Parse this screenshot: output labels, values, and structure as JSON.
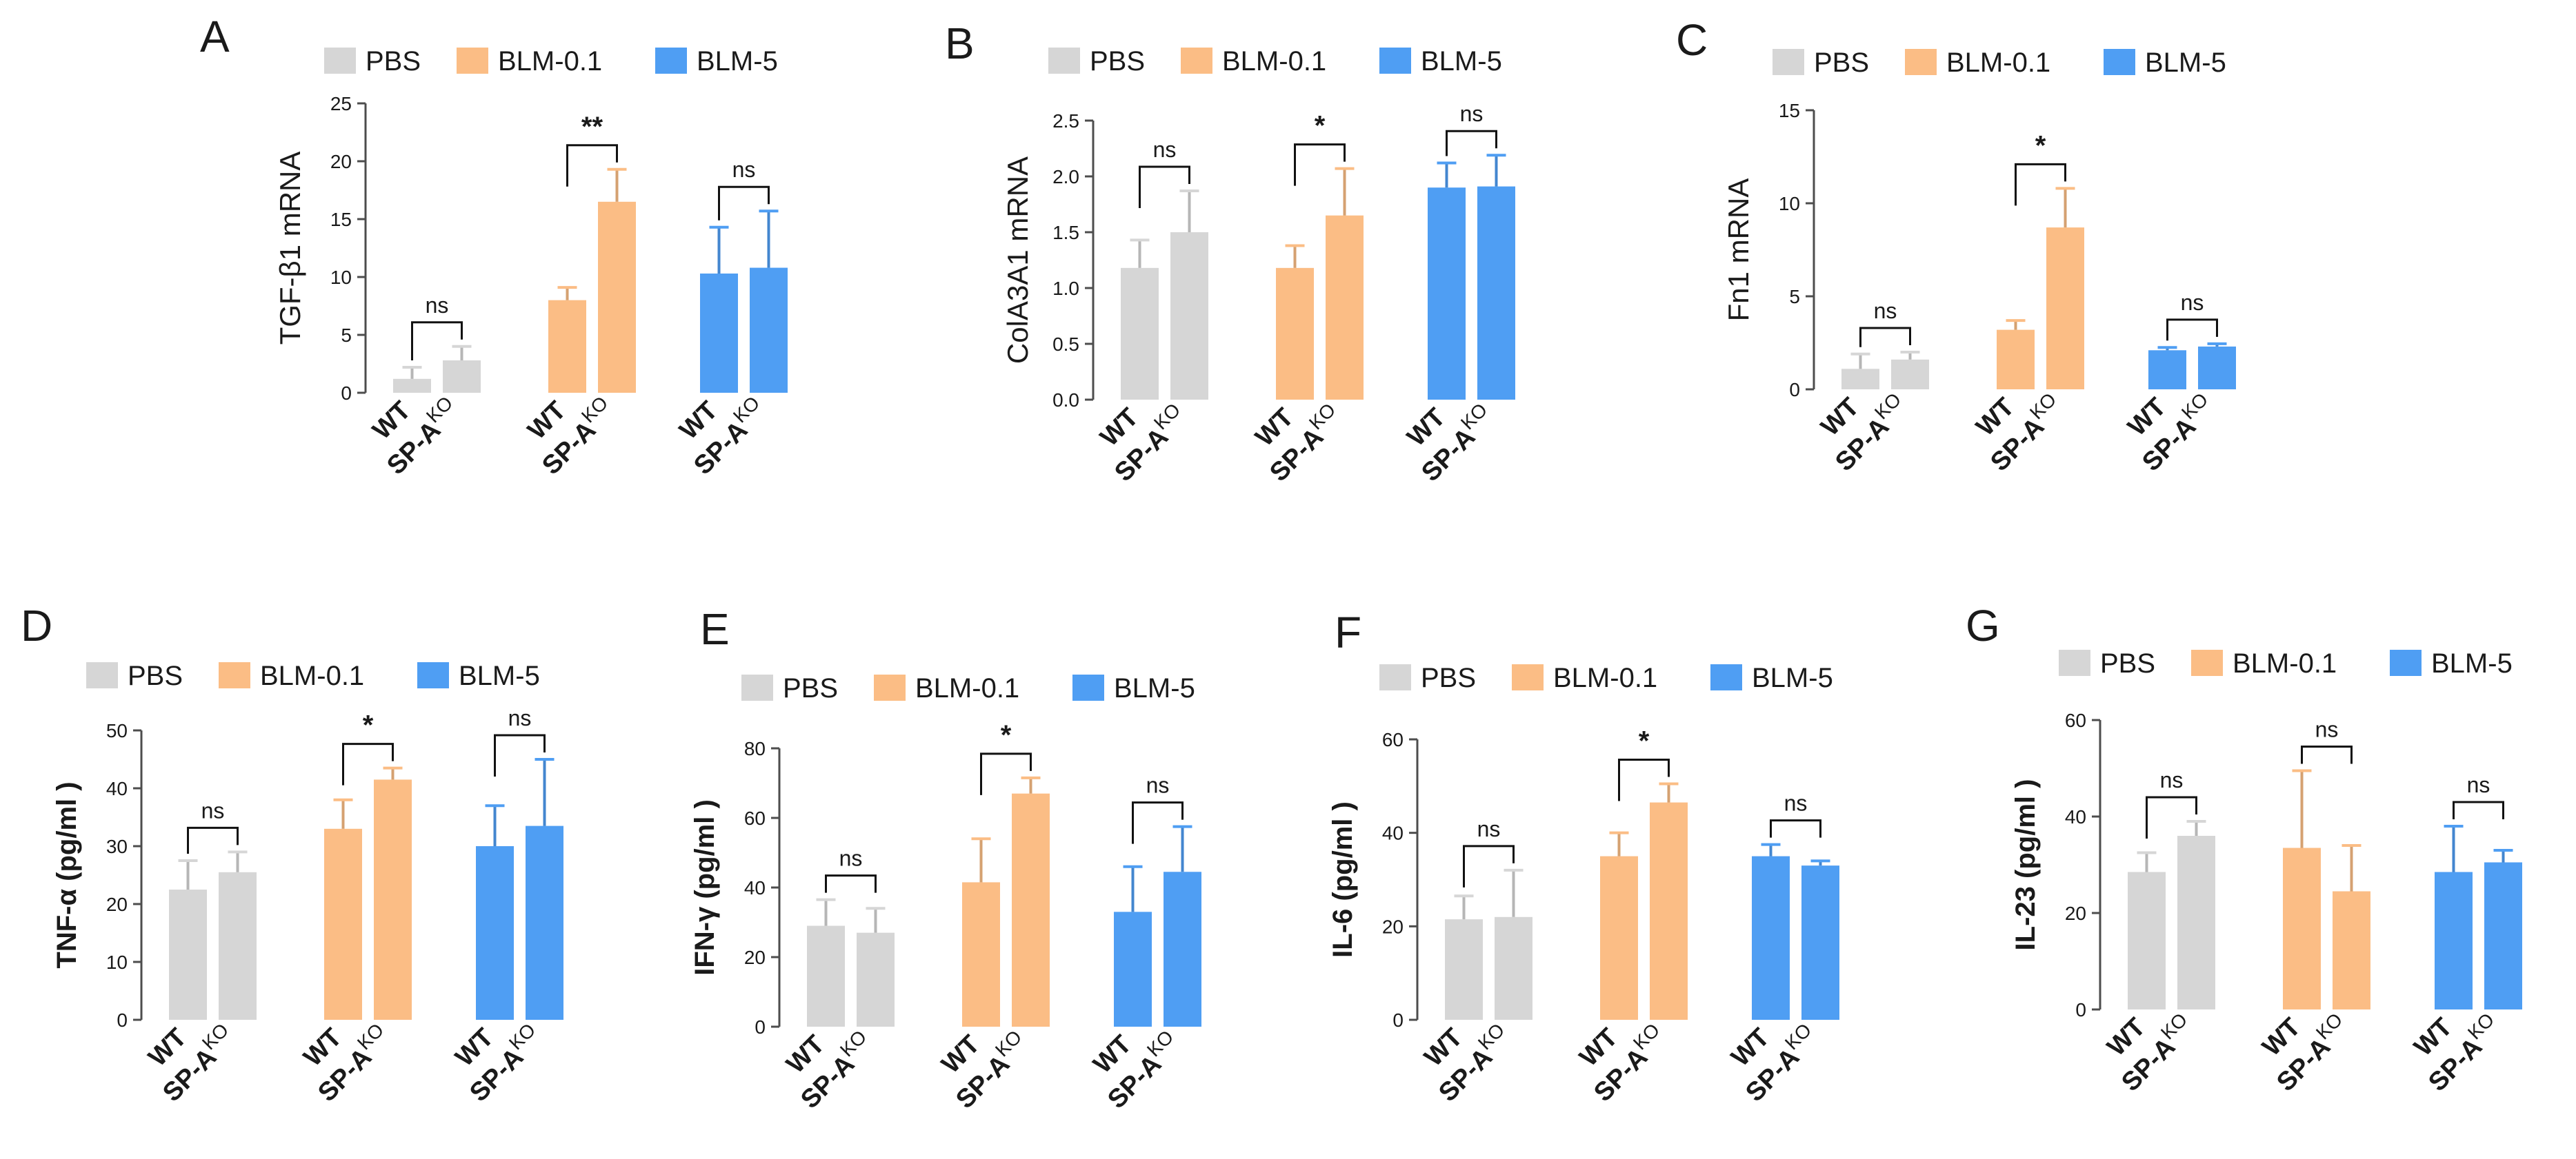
{
  "colors": {
    "PBS": "#d6d6d6",
    "BLM-0.1": "#fbbd85",
    "BLM-5": "#4f9ef3",
    "axis": "#4d4d4d",
    "text": "#1a1a1a"
  },
  "legend": [
    "PBS",
    "BLM-0.1",
    "BLM-5"
  ],
  "x_labels": {
    "wt": "WT",
    "spa": "SP-A",
    "ko": "KO"
  },
  "chart_data": [
    {
      "panel": "A",
      "type": "bar",
      "ylabel": "TGF-β1 mRNA",
      "ylabel_bold": false,
      "ylim": [
        0,
        25
      ],
      "yticks": [
        0,
        5,
        10,
        15,
        20,
        25
      ],
      "categories": [
        "WT",
        "SP-A KO"
      ],
      "series": [
        {
          "name": "PBS",
          "values": [
            1.2,
            2.8
          ],
          "errors": [
            1.0,
            1.2
          ]
        },
        {
          "name": "BLM-0.1",
          "values": [
            8.0,
            16.5
          ],
          "errors": [
            1.1,
            2.8
          ]
        },
        {
          "name": "BLM-5",
          "values": [
            10.3,
            10.8
          ],
          "errors": [
            4.0,
            4.9
          ]
        }
      ],
      "significance": [
        {
          "group": "PBS",
          "label": "ns"
        },
        {
          "group": "BLM-0.1",
          "label": "**"
        },
        {
          "group": "BLM-5",
          "label": "ns"
        }
      ]
    },
    {
      "panel": "B",
      "type": "bar",
      "ylabel": "ColA3A1 mRNA",
      "ylabel_bold": false,
      "ylim": [
        0,
        2.5
      ],
      "yticks": [
        0,
        0.5,
        1.0,
        1.5,
        2.0,
        2.5
      ],
      "categories": [
        "WT",
        "SP-A KO"
      ],
      "series": [
        {
          "name": "PBS",
          "values": [
            1.18,
            1.5
          ],
          "errors": [
            0.25,
            0.37
          ]
        },
        {
          "name": "BLM-0.1",
          "values": [
            1.18,
            1.65
          ],
          "errors": [
            0.2,
            0.42
          ]
        },
        {
          "name": "BLM-5",
          "values": [
            1.9,
            1.91
          ],
          "errors": [
            0.22,
            0.28
          ]
        }
      ],
      "significance": [
        {
          "group": "PBS",
          "label": "ns"
        },
        {
          "group": "BLM-0.1",
          "label": "*"
        },
        {
          "group": "BLM-5",
          "label": "ns"
        }
      ]
    },
    {
      "panel": "C",
      "type": "bar",
      "ylabel": "Fn1 mRNA",
      "ylabel_bold": false,
      "ylim": [
        0,
        15
      ],
      "yticks": [
        0,
        5,
        10,
        15
      ],
      "categories": [
        "WT",
        "SP-A KO"
      ],
      "series": [
        {
          "name": "PBS",
          "values": [
            1.1,
            1.6
          ],
          "errors": [
            0.8,
            0.4
          ]
        },
        {
          "name": "BLM-0.1",
          "values": [
            3.2,
            8.7
          ],
          "errors": [
            0.5,
            2.1
          ]
        },
        {
          "name": "BLM-5",
          "values": [
            2.1,
            2.3
          ],
          "errors": [
            0.15,
            0.15
          ]
        }
      ],
      "significance": [
        {
          "group": "PBS",
          "label": "ns"
        },
        {
          "group": "BLM-0.1",
          "label": "*"
        },
        {
          "group": "BLM-5",
          "label": "ns"
        }
      ]
    },
    {
      "panel": "D",
      "type": "bar",
      "ylabel": "TNF-α (pg/ml )",
      "ylabel_bold": true,
      "ylim": [
        0,
        50
      ],
      "yticks": [
        0,
        10,
        20,
        30,
        40,
        50
      ],
      "categories": [
        "WT",
        "SP-A KO"
      ],
      "series": [
        {
          "name": "PBS",
          "values": [
            22.5,
            25.5
          ],
          "errors": [
            5.0,
            3.5
          ]
        },
        {
          "name": "BLM-0.1",
          "values": [
            33.0,
            41.5
          ],
          "errors": [
            5.0,
            2.0
          ]
        },
        {
          "name": "BLM-5",
          "values": [
            30.0,
            33.5
          ],
          "errors": [
            7.0,
            11.5
          ]
        }
      ],
      "significance": [
        {
          "group": "PBS",
          "label": "ns"
        },
        {
          "group": "BLM-0.1",
          "label": "*"
        },
        {
          "group": "BLM-5",
          "label": "ns"
        }
      ]
    },
    {
      "panel": "E",
      "type": "bar",
      "ylabel": "IFN-γ (pg/ml )",
      "ylabel_bold": true,
      "ylim": [
        0,
        80
      ],
      "yticks": [
        0,
        20,
        40,
        60,
        80
      ],
      "categories": [
        "WT",
        "SP-A KO"
      ],
      "series": [
        {
          "name": "PBS",
          "values": [
            29.0,
            27.0
          ],
          "errors": [
            7.5,
            7.0
          ]
        },
        {
          "name": "BLM-0.1",
          "values": [
            41.5,
            67.0
          ],
          "errors": [
            12.5,
            4.5
          ]
        },
        {
          "name": "BLM-5",
          "values": [
            33.0,
            44.5
          ],
          "errors": [
            13.0,
            13.0
          ]
        }
      ],
      "significance": [
        {
          "group": "PBS",
          "label": "ns"
        },
        {
          "group": "BLM-0.1",
          "label": "*"
        },
        {
          "group": "BLM-5",
          "label": "ns"
        }
      ]
    },
    {
      "panel": "F",
      "type": "bar",
      "ylabel": "IL-6 (pg/ml )",
      "ylabel_bold": true,
      "ylim": [
        0,
        60
      ],
      "yticks": [
        0,
        20,
        40,
        60
      ],
      "categories": [
        "WT",
        "SP-A KO"
      ],
      "series": [
        {
          "name": "PBS",
          "values": [
            21.5,
            22.0
          ],
          "errors": [
            5.0,
            10.0
          ]
        },
        {
          "name": "BLM-0.1",
          "values": [
            35.0,
            46.5
          ],
          "errors": [
            5.0,
            4.0
          ]
        },
        {
          "name": "BLM-5",
          "values": [
            35.0,
            33.0
          ],
          "errors": [
            2.5,
            1.0
          ]
        }
      ],
      "significance": [
        {
          "group": "PBS",
          "label": "ns"
        },
        {
          "group": "BLM-0.1",
          "label": "*"
        },
        {
          "group": "BLM-5",
          "label": "ns"
        }
      ]
    },
    {
      "panel": "G",
      "type": "bar",
      "ylabel": "IL-23 (pg/ml )",
      "ylabel_bold": true,
      "ylim": [
        0,
        60
      ],
      "yticks": [
        0,
        20,
        40,
        60
      ],
      "categories": [
        "WT",
        "SP-A KO"
      ],
      "series": [
        {
          "name": "PBS",
          "values": [
            28.5,
            36.0
          ],
          "errors": [
            4.0,
            3.0
          ]
        },
        {
          "name": "BLM-0.1",
          "values": [
            33.5,
            24.5
          ],
          "errors": [
            16.0,
            9.5
          ]
        },
        {
          "name": "BLM-5",
          "values": [
            28.5,
            30.5
          ],
          "errors": [
            9.5,
            2.5
          ]
        }
      ],
      "significance": [
        {
          "group": "PBS",
          "label": "ns"
        },
        {
          "group": "BLM-0.1",
          "label": "ns"
        },
        {
          "group": "BLM-5",
          "label": "ns"
        }
      ]
    }
  ]
}
